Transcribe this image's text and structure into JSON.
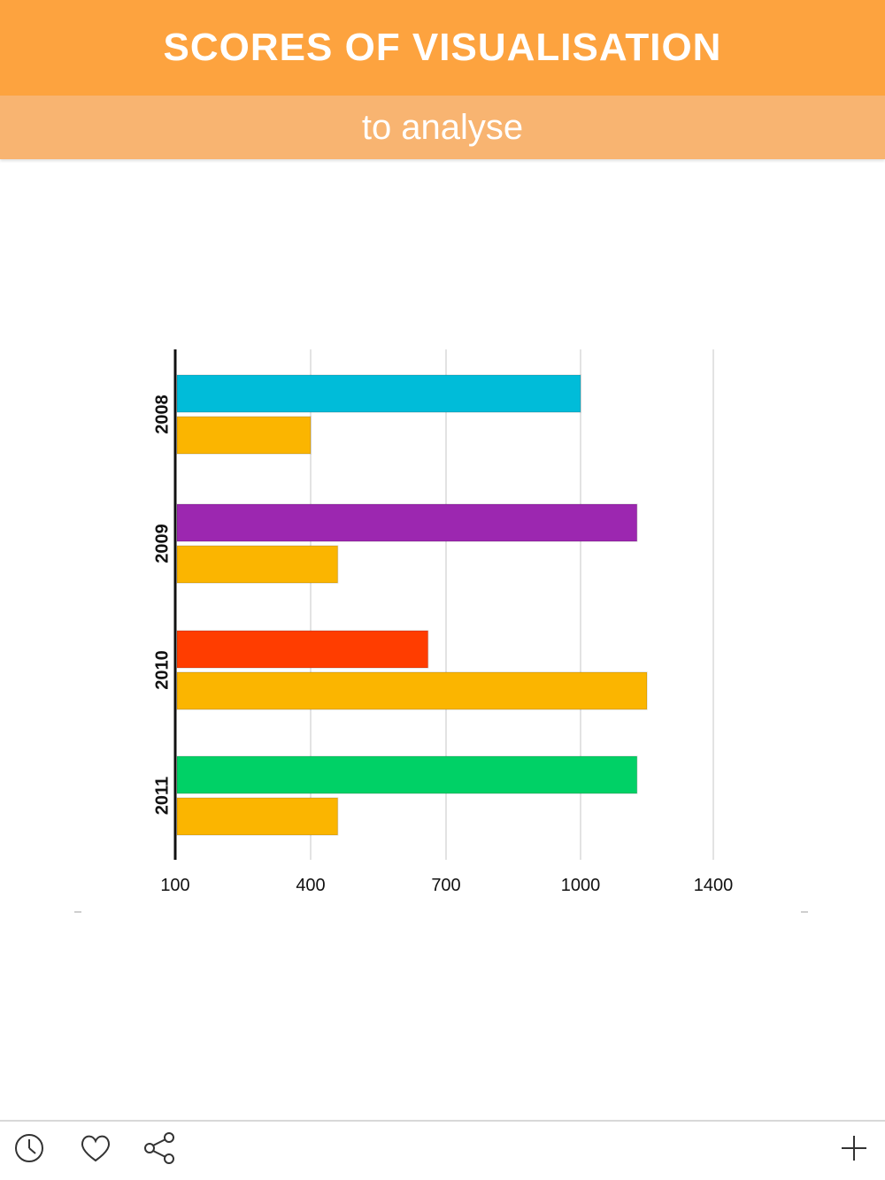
{
  "header": {
    "title": "SCORES OF VISUALISATION",
    "subtitle": "to analyse"
  },
  "colors": {
    "header_bg": "#FDA33F",
    "subheader_bg": "#F8B471",
    "yellow": "#FBB500",
    "cyan": "#00BCD9",
    "purple": "#9C27B0",
    "red": "#FF3D00",
    "green": "#00D166"
  },
  "footer": {
    "icons": [
      "clock-icon",
      "heart-icon",
      "share-icon",
      "plus-icon"
    ]
  },
  "chart_data": {
    "type": "bar",
    "orientation": "horizontal",
    "title": "",
    "xlabel": "",
    "ylabel": "",
    "categories": [
      "2008",
      "2009",
      "2010",
      "2011"
    ],
    "bars": [
      {
        "category": "2008",
        "series": "primary",
        "value": 1000,
        "color": "#00BCD9"
      },
      {
        "category": "2008",
        "series": "secondary",
        "value": 400,
        "color": "#FBB500"
      },
      {
        "category": "2009",
        "series": "primary",
        "value": 1170,
        "color": "#9C27B0"
      },
      {
        "category": "2009",
        "series": "secondary",
        "value": 460,
        "color": "#FBB500"
      },
      {
        "category": "2010",
        "series": "primary",
        "value": 660,
        "color": "#FF3D00"
      },
      {
        "category": "2010",
        "series": "secondary",
        "value": 1200,
        "color": "#FBB500"
      },
      {
        "category": "2011",
        "series": "primary",
        "value": 1170,
        "color": "#00D166"
      },
      {
        "category": "2011",
        "series": "secondary",
        "value": 460,
        "color": "#FBB500"
      }
    ],
    "x_ticks": [
      "100",
      "400",
      "700",
      "1000",
      "1400"
    ],
    "xlim": [
      100,
      1400
    ],
    "grid": true,
    "legend": "none"
  }
}
